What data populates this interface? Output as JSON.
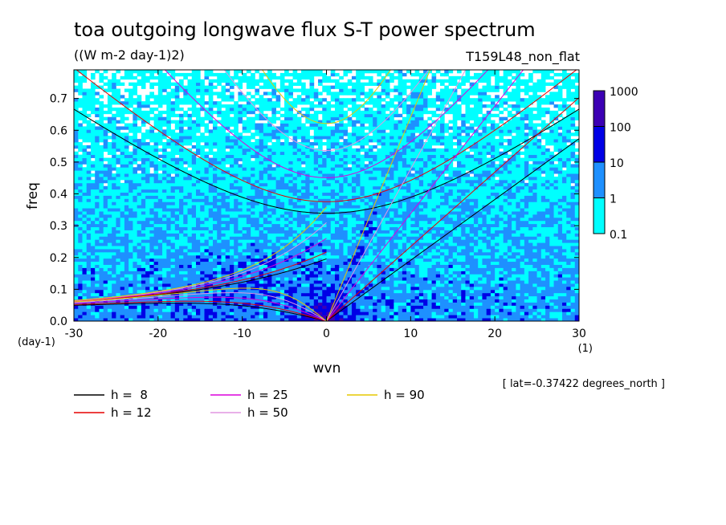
{
  "chart_data": {
    "type": "heatmap",
    "title": "toa outgoing longwave flux S-T power spectrum",
    "subtitle": "((W m-2 day-1)2)",
    "run_label": "T159L48_non_flat",
    "xlabel": "wvn",
    "xunit": "(1)",
    "ylabel": "freq",
    "yunit": "(day-1)",
    "xlim": [
      -30,
      30
    ],
    "ylim": [
      0,
      0.79
    ],
    "xticks": [
      "-30",
      "-20",
      "-10",
      "0",
      "10",
      "20",
      "30"
    ],
    "yticks": [
      "0.0",
      "0.1",
      "0.2",
      "0.3",
      "0.4",
      "0.5",
      "0.6",
      "0.7"
    ],
    "annotation": "[ lat=-0.37422 degrees_north ]",
    "colorbar": {
      "labels": [
        "1000",
        "100",
        "10",
        "1",
        "0.1"
      ],
      "levels": [
        0.1,
        1,
        10,
        100,
        1000
      ],
      "colors": [
        "#00ffff",
        "#1e90ff",
        "#0000e6",
        "#3c00b4"
      ]
    },
    "dispersion_curves": [
      {
        "name": "h =  8",
        "h": 8,
        "color": "#000000"
      },
      {
        "name": "h = 12",
        "h": 12,
        "color": "#e60000"
      },
      {
        "name": "h = 25",
        "h": 25,
        "color": "#dc00dc"
      },
      {
        "name": "h = 50",
        "h": 50,
        "color": "#e196e1"
      },
      {
        "name": "h = 90",
        "h": 90,
        "color": "#e6c800"
      }
    ]
  }
}
